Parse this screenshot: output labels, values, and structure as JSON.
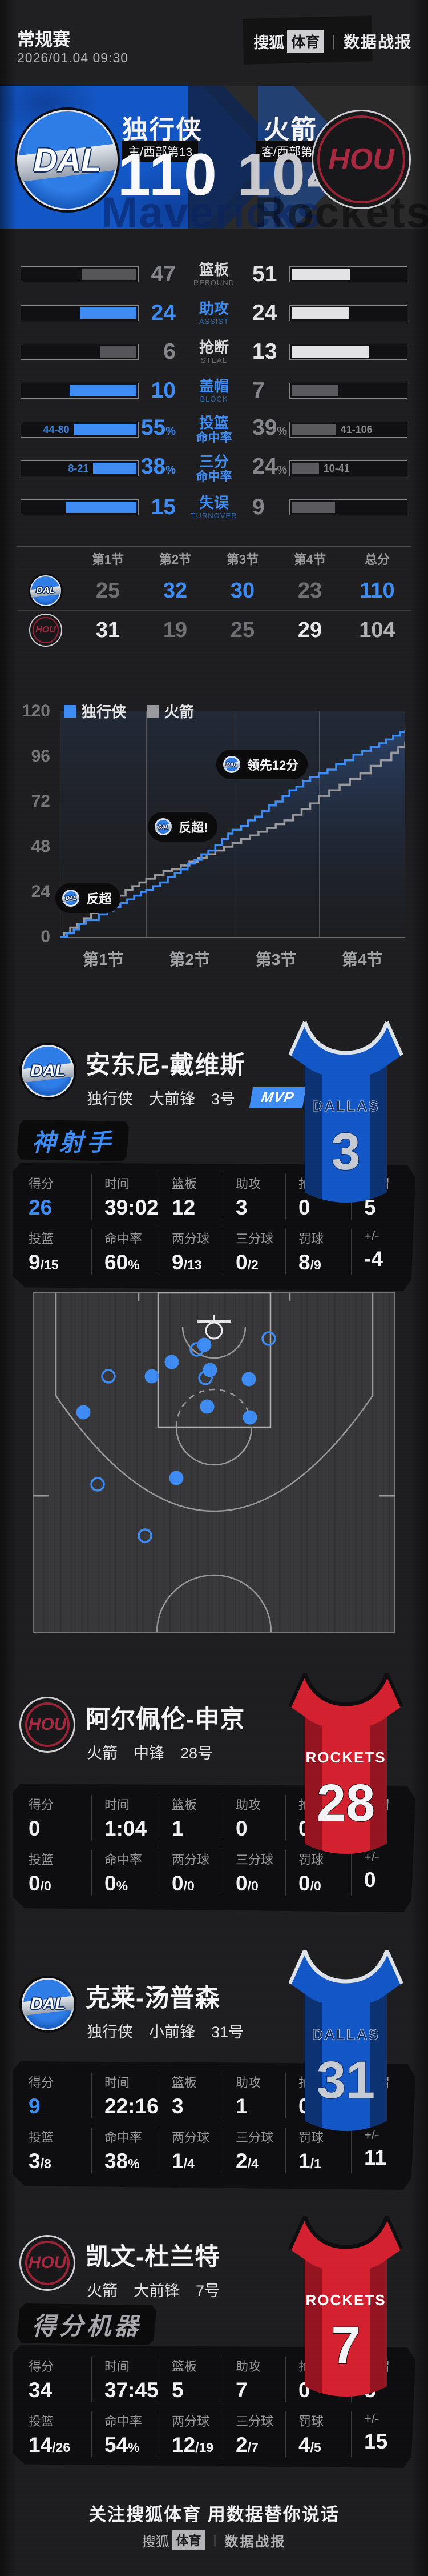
{
  "colors": {
    "accent_blue": "#3e8df5",
    "dal_blue": "#1257c8",
    "hou_red": "#a72840",
    "highlight_white": "#e4e4e6",
    "dim_gray": "#56565a"
  },
  "header": {
    "competition": "常规赛",
    "datetime": "2026/01.04 09:30"
  },
  "brand": {
    "sohu": "搜狐",
    "sports": "体育",
    "divider": "|",
    "report": "数据战报"
  },
  "scoreboard": {
    "home": {
      "abbr": "DAL",
      "name": "独行侠",
      "seed": "主/西部第13",
      "score": "110"
    },
    "away": {
      "abbr": "HOU",
      "name": "火箭",
      "seed": "客/西部第3",
      "score": "104"
    },
    "watermark_home": "Mavericks",
    "watermark_away": "Rockets"
  },
  "team_stats": {
    "rows": [
      {
        "label_cn": "篮板",
        "label_en": "REBOUND",
        "label_blue": false,
        "home": {
          "value": "47",
          "pct": 48,
          "hl": false
        },
        "away": {
          "value": "51",
          "pct": 52,
          "hl": true
        }
      },
      {
        "label_cn": "助攻",
        "label_en": "ASSIST",
        "label_blue": true,
        "home": {
          "value": "24",
          "pct": 50,
          "hl": true
        },
        "away": {
          "value": "24",
          "pct": 50,
          "hl": true
        }
      },
      {
        "label_cn": "抢断",
        "label_en": "STEAL",
        "label_blue": false,
        "home": {
          "value": "6",
          "pct": 32,
          "hl": false
        },
        "away": {
          "value": "13",
          "pct": 68,
          "hl": true
        }
      },
      {
        "label_cn": "盖帽",
        "label_en": "BLOCK",
        "label_blue": true,
        "home": {
          "value": "10",
          "pct": 59,
          "hl": true
        },
        "away": {
          "value": "7",
          "pct": 41,
          "hl": false
        }
      },
      {
        "label_cn": "投篮",
        "label_cn2": "命中率",
        "label_blue": true,
        "home": {
          "value": "55",
          "unit": "%",
          "ratio": "44-80",
          "pct": 55,
          "hl": true
        },
        "away": {
          "value": "39",
          "unit": "%",
          "ratio": "41-106",
          "pct": 39,
          "hl": false
        }
      },
      {
        "label_cn": "三分",
        "label_cn2": "命中率",
        "label_blue": true,
        "home": {
          "value": "38",
          "unit": "%",
          "ratio": "8-21",
          "pct": 38,
          "hl": true
        },
        "away": {
          "value": "24",
          "unit": "%",
          "ratio": "10-41",
          "pct": 24,
          "hl": false
        }
      },
      {
        "label_cn": "失误",
        "label_en": "TURNOVER",
        "label_blue": true,
        "home": {
          "value": "15",
          "pct": 62,
          "hl": true
        },
        "away": {
          "value": "9",
          "pct": 38,
          "hl": false
        }
      }
    ]
  },
  "quarters": {
    "headers": [
      "第1节",
      "第2节",
      "第3节",
      "第4节",
      "总分"
    ],
    "rows": [
      {
        "team": "DAL",
        "cells": [
          {
            "v": "25",
            "c": "dim"
          },
          {
            "v": "32",
            "c": "blue"
          },
          {
            "v": "30",
            "c": "blue"
          },
          {
            "v": "23",
            "c": "dim"
          },
          {
            "v": "110",
            "c": "blue"
          }
        ]
      },
      {
        "team": "HOU",
        "cells": [
          {
            "v": "31",
            "c": "white"
          },
          {
            "v": "19",
            "c": "dim"
          },
          {
            "v": "25",
            "c": "dim"
          },
          {
            "v": "29",
            "c": "white"
          },
          {
            "v": "104",
            "c": "mid"
          }
        ]
      }
    ]
  },
  "chart_data": [
    {
      "type": "line",
      "subtype": "step",
      "grid": "vertical-quarter-lines",
      "legend_position": "top-left",
      "legend": [
        {
          "label": "独行侠",
          "color": "#3e8df5"
        },
        {
          "label": "火箭",
          "color": "#9a9a9e"
        }
      ],
      "y_ticks": [
        0,
        24,
        48,
        72,
        96,
        120
      ],
      "y_range": [
        0,
        120
      ],
      "x_labels": [
        "第1节",
        "第2节",
        "第3节",
        "第4节"
      ],
      "x_range": [
        0,
        4
      ],
      "series": [
        {
          "name": "独行侠",
          "color": "#3e8df5",
          "quarter_totals": [
            25,
            57,
            87,
            110
          ],
          "points": [
            [
              0,
              0
            ],
            [
              0.08,
              2
            ],
            [
              0.16,
              4
            ],
            [
              0.22,
              7
            ],
            [
              0.3,
              9
            ],
            [
              0.38,
              9
            ],
            [
              0.45,
              12
            ],
            [
              0.55,
              14
            ],
            [
              0.62,
              16
            ],
            [
              0.7,
              18
            ],
            [
              0.78,
              20
            ],
            [
              0.86,
              22
            ],
            [
              0.94,
              24
            ],
            [
              1.0,
              25
            ],
            [
              1.08,
              27
            ],
            [
              1.16,
              29
            ],
            [
              1.25,
              32
            ],
            [
              1.33,
              34
            ],
            [
              1.4,
              36
            ],
            [
              1.48,
              39
            ],
            [
              1.56,
              41
            ],
            [
              1.64,
              44
            ],
            [
              1.72,
              46
            ],
            [
              1.8,
              49
            ],
            [
              1.88,
              52
            ],
            [
              1.95,
              55
            ],
            [
              2.0,
              57
            ],
            [
              2.1,
              59
            ],
            [
              2.18,
              62
            ],
            [
              2.26,
              64
            ],
            [
              2.34,
              67
            ],
            [
              2.42,
              70
            ],
            [
              2.5,
              72
            ],
            [
              2.58,
              75
            ],
            [
              2.66,
              78
            ],
            [
              2.74,
              80
            ],
            [
              2.82,
              83
            ],
            [
              2.9,
              85
            ],
            [
              3.0,
              87
            ],
            [
              3.1,
              89
            ],
            [
              3.2,
              92
            ],
            [
              3.3,
              94
            ],
            [
              3.4,
              97
            ],
            [
              3.5,
              99
            ],
            [
              3.6,
              101
            ],
            [
              3.7,
              103
            ],
            [
              3.78,
              105
            ],
            [
              3.86,
              107
            ],
            [
              3.94,
              109
            ],
            [
              4.0,
              110
            ]
          ]
        },
        {
          "name": "火箭",
          "color": "#9a9a9e",
          "quarter_totals": [
            31,
            50,
            75,
            104
          ],
          "points": [
            [
              0,
              0
            ],
            [
              0.05,
              2
            ],
            [
              0.12,
              5
            ],
            [
              0.2,
              7
            ],
            [
              0.28,
              10
            ],
            [
              0.36,
              13
            ],
            [
              0.44,
              15
            ],
            [
              0.52,
              17
            ],
            [
              0.6,
              20
            ],
            [
              0.68,
              22
            ],
            [
              0.76,
              25
            ],
            [
              0.84,
              27
            ],
            [
              0.92,
              29
            ],
            [
              1.0,
              31
            ],
            [
              1.1,
              33
            ],
            [
              1.2,
              35
            ],
            [
              1.3,
              36
            ],
            [
              1.4,
              38
            ],
            [
              1.5,
              40
            ],
            [
              1.6,
              42
            ],
            [
              1.7,
              44
            ],
            [
              1.8,
              46
            ],
            [
              1.9,
              48
            ],
            [
              2.0,
              50
            ],
            [
              2.1,
              52
            ],
            [
              2.2,
              54
            ],
            [
              2.3,
              56
            ],
            [
              2.4,
              58
            ],
            [
              2.5,
              60
            ],
            [
              2.6,
              62
            ],
            [
              2.7,
              65
            ],
            [
              2.8,
              68
            ],
            [
              2.9,
              71
            ],
            [
              3.0,
              75
            ],
            [
              3.12,
              78
            ],
            [
              3.24,
              81
            ],
            [
              3.36,
              84
            ],
            [
              3.48,
              87
            ],
            [
              3.6,
              91
            ],
            [
              3.72,
              94
            ],
            [
              3.84,
              98
            ],
            [
              3.92,
              101
            ],
            [
              4.0,
              104
            ]
          ]
        }
      ],
      "annotations": [
        {
          "logo": "DAL",
          "text": "反超",
          "t": -0.05,
          "score": 22
        },
        {
          "logo": "DAL",
          "text": "反超!",
          "t": 1.02,
          "score": 60
        },
        {
          "logo": "DAL",
          "text": "领先12分",
          "t": 1.81,
          "score": 93
        }
      ]
    },
    {
      "type": "scatter",
      "name": "shot-chart",
      "player": "安东尼-戴维斯",
      "made_color": "#3e8df5",
      "frame": [
        634,
        596
      ],
      "made": [
        [
          300,
          92
        ],
        [
          243,
          122
        ],
        [
          310,
          136
        ],
        [
          208,
          147
        ],
        [
          378,
          152
        ],
        [
          305,
          200
        ],
        [
          380,
          219
        ],
        [
          88,
          210
        ],
        [
          251,
          325
        ]
      ],
      "missed": [
        [
          413,
          81
        ],
        [
          287,
          100
        ],
        [
          302,
          150
        ],
        [
          132,
          147
        ],
        [
          113,
          336
        ],
        [
          196,
          426
        ]
      ]
    }
  ],
  "players": [
    {
      "abbr": "DAL",
      "name": "安东尼-戴维斯",
      "team": "独行侠",
      "position": "大前锋",
      "number": "3号",
      "mvp": "MVP",
      "badge": {
        "text": "神射手",
        "color": "blue"
      },
      "jersey": {
        "team": "DALLAS",
        "number": "3",
        "style": "dal"
      },
      "shot_chart": true,
      "stats": [
        {
          "l": "得分",
          "v": "26",
          "c": "blue"
        },
        {
          "l": "时间",
          "v": "39:02"
        },
        {
          "l": "篮板",
          "v": "12"
        },
        {
          "l": "助攻",
          "v": "3"
        },
        {
          "l": "抢断",
          "v": "0"
        },
        {
          "l": "盖帽",
          "v": "5"
        },
        {
          "l": "投篮",
          "v": "9",
          "s": "/15"
        },
        {
          "l": "命中率",
          "v": "60",
          "s": "%"
        },
        {
          "l": "两分球",
          "v": "9",
          "s": "/13"
        },
        {
          "l": "三分球",
          "v": "0",
          "s": "/2"
        },
        {
          "l": "罚球",
          "v": "8",
          "s": "/9"
        },
        {
          "l": "+/-",
          "v": "-4"
        }
      ]
    },
    {
      "abbr": "HOU",
      "name": "阿尔佩伦-申京",
      "team": "火箭",
      "position": "中锋",
      "number": "28号",
      "jersey": {
        "team": "ROCKETS",
        "number": "28",
        "style": "hou"
      },
      "stats": [
        {
          "l": "得分",
          "v": "0"
        },
        {
          "l": "时间",
          "v": "1:04"
        },
        {
          "l": "篮板",
          "v": "1"
        },
        {
          "l": "助攻",
          "v": "0"
        },
        {
          "l": "抢断",
          "v": "0"
        },
        {
          "l": "盖帽",
          "v": "0"
        },
        {
          "l": "投篮",
          "v": "0",
          "s": "/0"
        },
        {
          "l": "命中率",
          "v": "0",
          "s": "%"
        },
        {
          "l": "两分球",
          "v": "0",
          "s": "/0"
        },
        {
          "l": "三分球",
          "v": "0",
          "s": "/0"
        },
        {
          "l": "罚球",
          "v": "0",
          "s": "/0"
        },
        {
          "l": "+/-",
          "v": "0"
        }
      ]
    },
    {
      "abbr": "DAL",
      "name": "克莱-汤普森",
      "team": "独行侠",
      "position": "小前锋",
      "number": "31号",
      "jersey": {
        "team": "DALLAS",
        "number": "31",
        "style": "dal"
      },
      "stats": [
        {
          "l": "得分",
          "v": "9",
          "c": "blue"
        },
        {
          "l": "时间",
          "v": "22:16"
        },
        {
          "l": "篮板",
          "v": "3"
        },
        {
          "l": "助攻",
          "v": "1"
        },
        {
          "l": "抢断",
          "v": "0"
        },
        {
          "l": "盖帽",
          "v": "0"
        },
        {
          "l": "投篮",
          "v": "3",
          "s": "/8"
        },
        {
          "l": "命中率",
          "v": "38",
          "s": "%"
        },
        {
          "l": "两分球",
          "v": "1",
          "s": "/4"
        },
        {
          "l": "三分球",
          "v": "2",
          "s": "/4"
        },
        {
          "l": "罚球",
          "v": "1",
          "s": "/1"
        },
        {
          "l": "+/-",
          "v": "11"
        }
      ]
    },
    {
      "abbr": "HOU",
      "name": "凯文-杜兰特",
      "team": "火箭",
      "position": "大前锋",
      "number": "7号",
      "badge": {
        "text": "得分机器",
        "color": "gray"
      },
      "jersey": {
        "team": "ROCKETS",
        "number": "7",
        "style": "hou"
      },
      "stats": [
        {
          "l": "得分",
          "v": "34"
        },
        {
          "l": "时间",
          "v": "37:45"
        },
        {
          "l": "篮板",
          "v": "5"
        },
        {
          "l": "助攻",
          "v": "7"
        },
        {
          "l": "抢断",
          "v": "0"
        },
        {
          "l": "盖帽",
          "v": "3"
        },
        {
          "l": "投篮",
          "v": "14",
          "s": "/26"
        },
        {
          "l": "命中率",
          "v": "54",
          "s": "%"
        },
        {
          "l": "两分球",
          "v": "12",
          "s": "/19"
        },
        {
          "l": "三分球",
          "v": "2",
          "s": "/7"
        },
        {
          "l": "罚球",
          "v": "4",
          "s": "/5"
        },
        {
          "l": "+/-",
          "v": "15"
        }
      ]
    }
  ],
  "footer": {
    "slogan": "关注搜狐体育 用数据替你说话"
  }
}
